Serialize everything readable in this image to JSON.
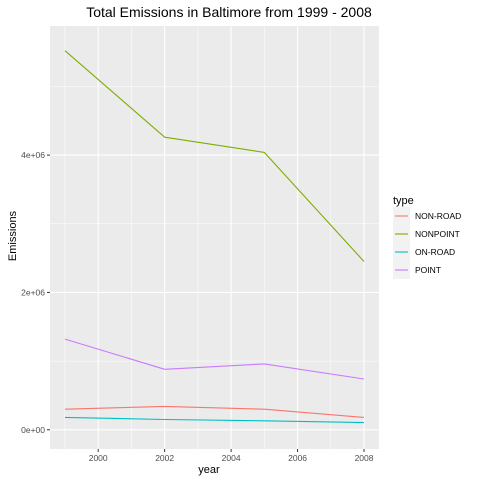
{
  "chart_data": {
    "type": "line",
    "title": "Total Emissions in Baltimore from 1999 - 2008",
    "xlabel": "year",
    "ylabel": "Emissions",
    "x": [
      1999,
      2002,
      2005,
      2008
    ],
    "xlim": [
      1998.55,
      2008.45
    ],
    "ylim": [
      -280000,
      5880000
    ],
    "x_ticks": [
      2000,
      2002,
      2004,
      2006,
      2008
    ],
    "x_tick_labels": [
      "2000",
      "2002",
      "2004",
      "2006",
      "2008"
    ],
    "y_ticks": [
      0,
      2000000,
      4000000
    ],
    "y_tick_labels": [
      "0e+00",
      "2e+06",
      "4e+06"
    ],
    "grid": true,
    "legend_title": "type",
    "legend_position": "right",
    "series": [
      {
        "name": "NON-ROAD",
        "color": "#F8766D",
        "values": [
          300000,
          340000,
          300000,
          180000
        ]
      },
      {
        "name": "NONPOINT",
        "color": "#7CAE00",
        "values": [
          5520000,
          4260000,
          4040000,
          2450000
        ]
      },
      {
        "name": "ON-ROAD",
        "color": "#00BFC4",
        "values": [
          180000,
          150000,
          130000,
          105000
        ]
      },
      {
        "name": "POINT",
        "color": "#C77CFF",
        "values": [
          1320000,
          880000,
          960000,
          740000
        ]
      }
    ],
    "panel_background": "#EBEBEB",
    "grid_color": "#FFFFFF"
  }
}
